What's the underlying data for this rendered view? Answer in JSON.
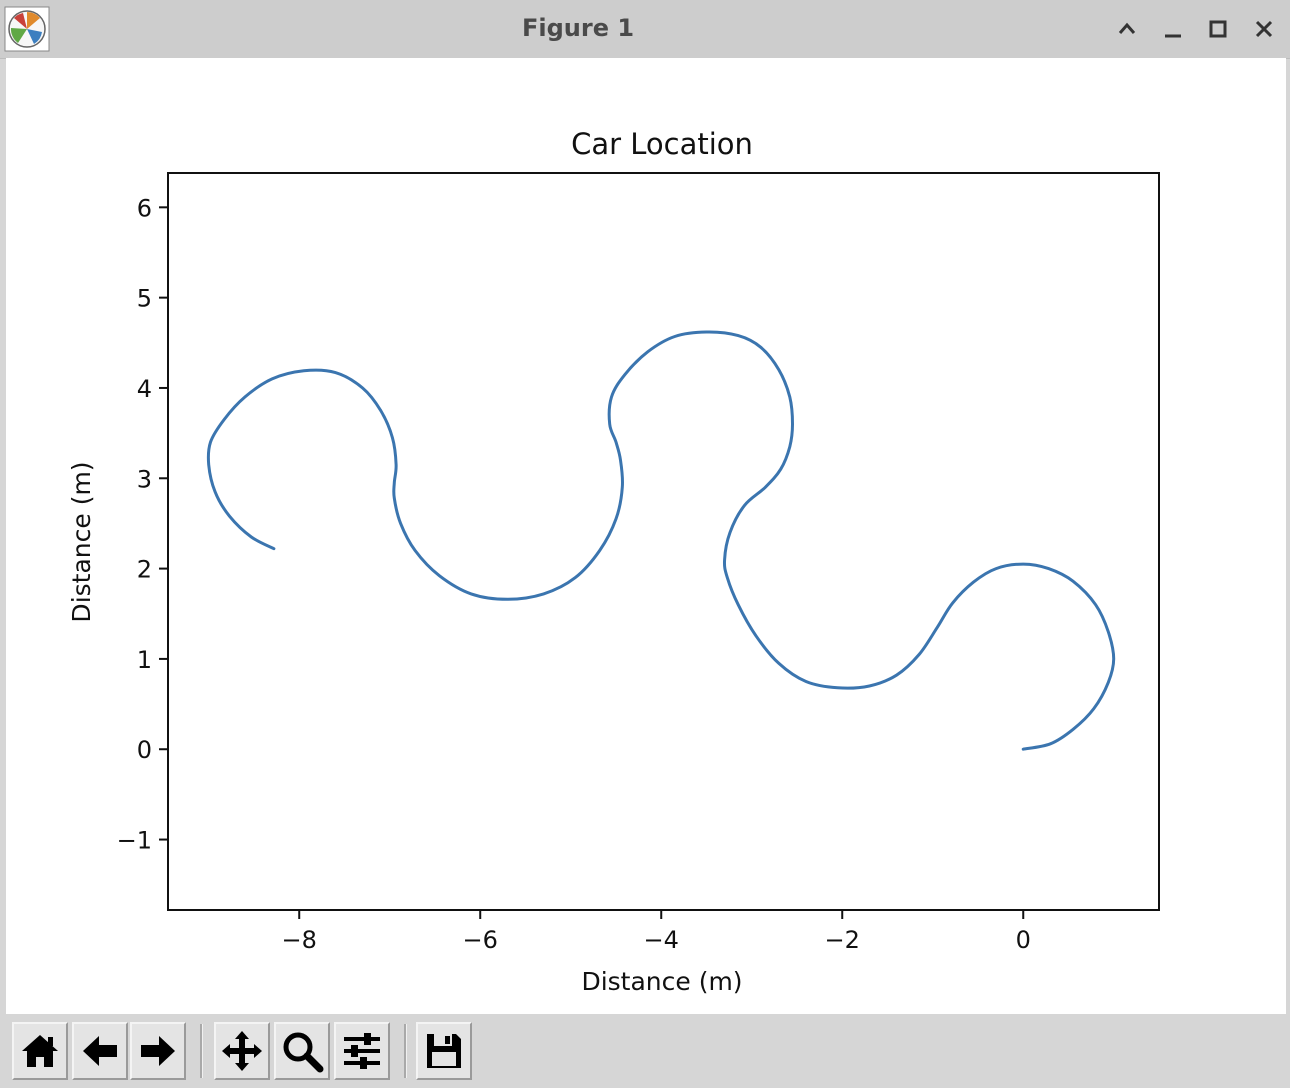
{
  "window": {
    "title": "Figure 1"
  },
  "toolbar": {
    "buttons": [
      "home-icon",
      "back-arrow-icon",
      "forward-arrow-icon",
      "pan-icon",
      "zoom-icon",
      "configure-subplots-icon",
      "save-icon"
    ]
  },
  "colors": {
    "line": "#3b75af",
    "titlebar": "#cdcdcd",
    "toolbar": "#d6d6d6"
  },
  "chart_data": {
    "type": "line",
    "title": "Car Location",
    "xlabel": "Distance (m)",
    "ylabel": "Distance (m)",
    "xlim": [
      -9.45,
      1.5
    ],
    "ylim": [
      -1.78,
      6.38
    ],
    "xticks": [
      -8,
      -6,
      -4,
      -2,
      0
    ],
    "xtick_labels": [
      "−8",
      "−6",
      "−4",
      "−2",
      "0"
    ],
    "yticks": [
      -1,
      0,
      1,
      2,
      3,
      4,
      5,
      6
    ],
    "ytick_labels": [
      "−1",
      "0",
      "1",
      "2",
      "3",
      "4",
      "5",
      "6"
    ],
    "grid": false,
    "legend": "none",
    "series": [
      {
        "x": [
          0.0,
          0.3,
          0.55,
          0.78,
          0.94,
          1.0,
          0.94,
          0.8,
          0.55,
          0.28,
          0.0,
          -0.3,
          -0.55,
          -0.78,
          -0.95,
          -1.15,
          -1.4,
          -1.7,
          -2.05,
          -2.4,
          -2.7,
          -2.95,
          -3.15,
          -3.27,
          -3.3,
          -3.24,
          -3.08,
          -2.85,
          -2.68,
          -2.58,
          -2.55,
          -2.58,
          -2.7,
          -2.9,
          -3.15,
          -3.5,
          -3.85,
          -4.15,
          -4.4,
          -4.55,
          -4.57,
          -4.5,
          -4.45,
          -4.43,
          -4.5,
          -4.68,
          -4.95,
          -5.3,
          -5.7,
          -6.1,
          -6.45,
          -6.72,
          -6.88,
          -6.95,
          -6.95,
          -6.93,
          -6.97,
          -7.1,
          -7.3,
          -7.6,
          -7.95,
          -8.3,
          -8.6,
          -8.83,
          -8.98,
          -9.0,
          -8.93,
          -8.77,
          -8.53,
          -8.28
        ],
        "y": [
          0.0,
          0.06,
          0.22,
          0.45,
          0.74,
          1.0,
          1.3,
          1.6,
          1.86,
          2.0,
          2.05,
          2.0,
          1.85,
          1.62,
          1.35,
          1.05,
          0.82,
          0.7,
          0.68,
          0.75,
          0.95,
          1.25,
          1.6,
          1.9,
          2.1,
          2.4,
          2.7,
          2.9,
          3.1,
          3.35,
          3.6,
          3.9,
          4.2,
          4.45,
          4.58,
          4.62,
          4.57,
          4.4,
          4.15,
          3.9,
          3.6,
          3.4,
          3.2,
          2.9,
          2.55,
          2.2,
          1.9,
          1.72,
          1.66,
          1.72,
          1.92,
          2.2,
          2.5,
          2.78,
          2.95,
          3.15,
          3.45,
          3.75,
          4.0,
          4.17,
          4.19,
          4.1,
          3.9,
          3.65,
          3.4,
          3.15,
          2.85,
          2.58,
          2.35,
          2.22
        ]
      }
    ]
  }
}
